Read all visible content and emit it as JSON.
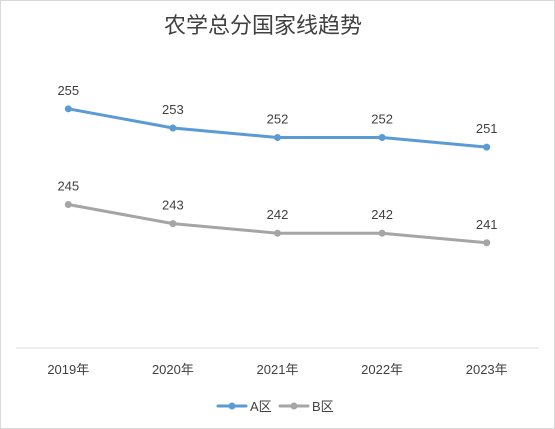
{
  "chart_data": {
    "type": "line",
    "title": "农学总分国家线趋势",
    "categories": [
      "2019年",
      "2020年",
      "2021年",
      "2022年",
      "2023年"
    ],
    "series": [
      {
        "name": "A区",
        "values": [
          255,
          253,
          252,
          252,
          251
        ],
        "color": "#5b9bd5"
      },
      {
        "name": "B区",
        "values": [
          245,
          243,
          242,
          242,
          241
        ],
        "color": "#a5a5a5"
      }
    ],
    "ylim": [
      230,
      260
    ],
    "grid": false,
    "legend": "bottom",
    "data_labels": true,
    "axis_color": "#d9d9d9"
  }
}
